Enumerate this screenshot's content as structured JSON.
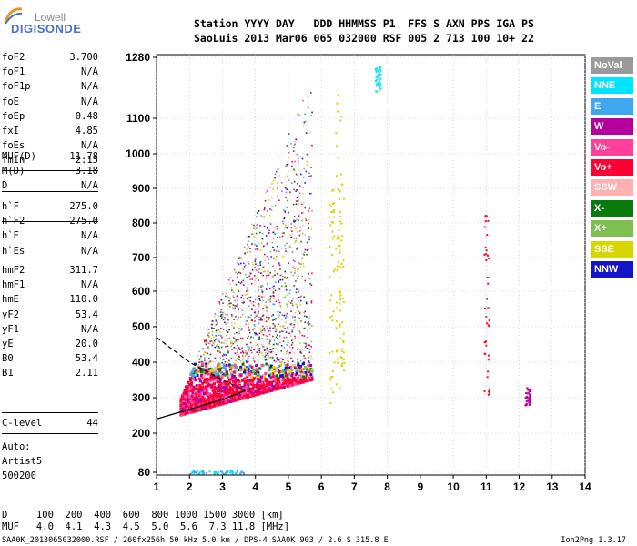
{
  "logo": {
    "line1": "Lowell",
    "line2": "DIGISONDE"
  },
  "header": {
    "row1": "Station YYYY DAY   DDD HHMMSS P1  FFS S AXN PPS IGA PS",
    "row2": "SaoLuis 2013 Mar06 065 032000 RSF 005 2 713 100 10+ 22"
  },
  "params_group1": [
    {
      "name": "foF2",
      "value": "3.700"
    },
    {
      "name": "foF1",
      "value": "N/A"
    },
    {
      "name": "foF1p",
      "value": "N/A"
    },
    {
      "name": "foE",
      "value": "N/A"
    },
    {
      "name": "foEp",
      "value": "0.48"
    },
    {
      "name": "fxI",
      "value": "4.85"
    },
    {
      "name": "foEs",
      "value": "N/A"
    },
    {
      "name": "fmin",
      "value": "2.15"
    }
  ],
  "params_group2": [
    {
      "name": "MUF(D)",
      "value": "11.78"
    },
    {
      "name": "M(D)",
      "value": "3.18"
    },
    {
      "name": "D",
      "value": "N/A"
    }
  ],
  "params_group3": [
    {
      "name": "h`F",
      "value": "275.0"
    },
    {
      "name": "h`F2",
      "value": "275.0"
    },
    {
      "name": "h`E",
      "value": "N/A"
    },
    {
      "name": "h`Es",
      "value": "N/A"
    }
  ],
  "params_group4": [
    {
      "name": "hmF2",
      "value": "311.7"
    },
    {
      "name": "hmF1",
      "value": "N/A"
    },
    {
      "name": "hmE",
      "value": "110.0"
    },
    {
      "name": "yF2",
      "value": "53.4"
    },
    {
      "name": "yF1",
      "value": "N/A"
    },
    {
      "name": "yE",
      "value": "20.0"
    },
    {
      "name": "B0",
      "value": "53.4"
    },
    {
      "name": "B1",
      "value": "2.11"
    }
  ],
  "params_group5": [
    {
      "name": "C-level",
      "value": "44"
    }
  ],
  "auto": [
    "Auto:",
    "Artist5",
    "500200"
  ],
  "d_muf_table": {
    "d_row": "D     100  200  400  600  800 1000 1500 3000 [km]",
    "muf_row": "MUF   4.0  4.1  4.3  4.5  5.0  5.6  7.3 11.8 [MHz]"
  },
  "footer": {
    "left": "SAA0K_2013065032000.RSF / 260fx256h 50 kHz 5.0 km / DPS-4 SAA0K 903 / 2.6 S 315.8 E",
    "right": "Ion2Png 1.3.17"
  },
  "legend": [
    {
      "label": "NoVal",
      "color": "#9a9a9a"
    },
    {
      "label": "NNE",
      "color": "#00e5ff"
    },
    {
      "label": "E",
      "color": "#3fa6f0"
    },
    {
      "label": "W",
      "color": "#b5009c"
    },
    {
      "label": "Vo-",
      "color": "#ff3f9a"
    },
    {
      "label": "Vo+",
      "color": "#ff0033"
    },
    {
      "label": "SSW",
      "color": "#ffb0b0"
    },
    {
      "label": "X-",
      "color": "#0a7a0a"
    },
    {
      "label": "X+",
      "color": "#7fbf4f"
    },
    {
      "label": "SSE",
      "color": "#d6d600"
    },
    {
      "label": "NNW",
      "color": "#1414c8"
    }
  ],
  "chart_data": {
    "type": "scatter",
    "title": "",
    "xlabel": "",
    "ylabel": "",
    "xlim": [
      1,
      14
    ],
    "ylim": [
      80,
      1280
    ],
    "x_ticks": [
      "1",
      "2",
      "3",
      "4",
      "5",
      "6",
      "7",
      "8",
      "9",
      "10",
      "11",
      "12",
      "13",
      "14"
    ],
    "y_ticks": [
      "80",
      "200",
      "300",
      "400",
      "500",
      "600",
      "700",
      "800",
      "900",
      "1000",
      "1100",
      "1280"
    ],
    "y_tick_values": [
      80,
      200,
      300,
      400,
      500,
      600,
      700,
      800,
      900,
      1000,
      1100,
      1280
    ],
    "main_cloud": {
      "x_range": [
        1.7,
        5.7
      ],
      "y_range": [
        250,
        1200
      ]
    },
    "echo_bands": [
      {
        "x": 6.3,
        "y_range": [
          280,
          900
        ],
        "color": "#d6d600"
      },
      {
        "x": 6.5,
        "y_range": [
          300,
          1180
        ],
        "color": "#d6d600"
      },
      {
        "x": 6.6,
        "y_range": [
          350,
          950
        ],
        "color": "#d6d600"
      },
      {
        "x": 7.7,
        "y_range": [
          1180,
          1260
        ],
        "color": "#00e5ff"
      },
      {
        "x": 11.0,
        "y_range": [
          290,
          830
        ],
        "color": "#ff0033"
      },
      {
        "x": 12.25,
        "y_range": [
          280,
          330
        ],
        "color": "#b5009c"
      }
    ],
    "low_echo": {
      "x_range": [
        2.0,
        3.7
      ],
      "y_value": 82
    },
    "trace_lower": [
      [
        1,
        240
      ],
      [
        2.1,
        270
      ],
      [
        3,
        295
      ],
      [
        3.7,
        320
      ]
    ],
    "trace_dashed": [
      [
        1,
        470
      ],
      [
        2,
        400
      ],
      [
        3,
        350
      ],
      [
        3.7,
        320
      ]
    ]
  }
}
